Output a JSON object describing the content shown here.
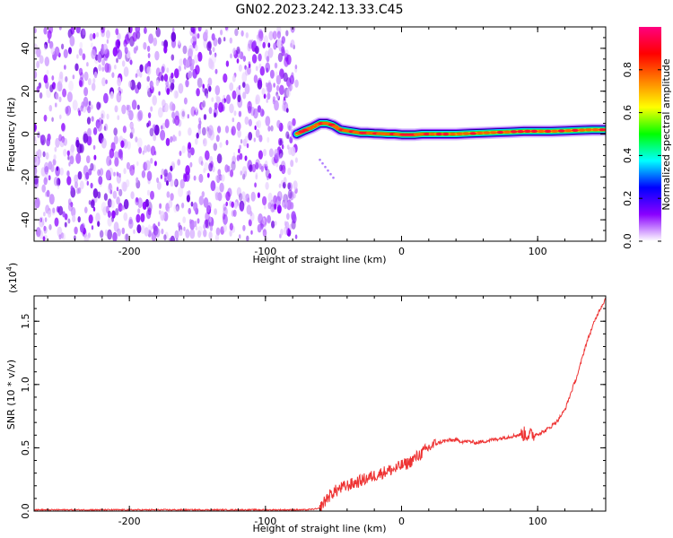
{
  "title": "GN02.2023.242.13.33.C45",
  "chart_data": [
    {
      "type": "heatmap",
      "xlabel": "Height of straight line (km)",
      "ylabel": "Frequency (Hz)",
      "xlim": [
        -270,
        150
      ],
      "ylim": [
        -50,
        50
      ],
      "x_ticks": [
        -200,
        -100,
        0,
        100
      ],
      "y_ticks": [
        -40,
        -20,
        0,
        20,
        40
      ],
      "noise_region_x": [
        -270,
        -77
      ],
      "signal_trace": {
        "x": [
          -77,
          -72,
          -66,
          -60,
          -55,
          -50,
          -45,
          -40,
          -35,
          -30,
          -25,
          -20,
          -15,
          -10,
          -5,
          0,
          5,
          10,
          15,
          20,
          30,
          40,
          50,
          60,
          70,
          80,
          90,
          100,
          110,
          120,
          130,
          140,
          150
        ],
        "y": [
          0,
          1.5,
          3,
          5,
          5,
          4,
          2,
          1.5,
          1,
          0.5,
          0.5,
          0.3,
          0.2,
          0,
          0,
          -0.3,
          -0.3,
          -0.3,
          0,
          0,
          0,
          0,
          0.3,
          0.5,
          0.8,
          1,
          1.3,
          1.3,
          1.3,
          1.5,
          1.8,
          2,
          2
        ]
      },
      "colorbar": {
        "label": "Normalized spectral amplitude",
        "range": [
          0.0,
          1.0
        ],
        "ticks": [
          "0.0",
          "0.2",
          "0.4",
          "0.6",
          "0.8"
        ],
        "tick_values": [
          0,
          0.2,
          0.4,
          0.6,
          0.8
        ],
        "colors": [
          "#ffffff",
          "#8a00ff",
          "#0000ff",
          "#00ffff",
          "#00ff00",
          "#ffff00",
          "#ff8000",
          "#ff0000",
          "#ff0080"
        ]
      }
    },
    {
      "type": "line",
      "xlabel": "Height of straight line (km)",
      "ylabel": "SNR (10 * v/v)",
      "multiplier_label": "(x10",
      "multiplier_exp": "4",
      "multiplier_close": ")",
      "xlim": [
        -270,
        150
      ],
      "ylim": [
        0.0,
        1.7
      ],
      "x_ticks": [
        -200,
        -100,
        0,
        100
      ],
      "y_ticks": [
        0.0,
        0.5,
        1.0,
        1.5
      ],
      "y_tick_labels": [
        "0.0",
        "0.5",
        "1.0",
        "1.5"
      ],
      "series": [
        {
          "color": "#ee3333",
          "x": [
            -270,
            -200,
            -150,
            -100,
            -70,
            -60,
            -55,
            -50,
            -45,
            -40,
            -35,
            -30,
            -25,
            -20,
            -15,
            -10,
            -5,
            0,
            5,
            10,
            15,
            20,
            25,
            30,
            35,
            40,
            45,
            50,
            55,
            60,
            65,
            70,
            75,
            80,
            85,
            90,
            95,
            100,
            105,
            110,
            115,
            120,
            125,
            130,
            135,
            140,
            145,
            150
          ],
          "y": [
            0.01,
            0.01,
            0.01,
            0.01,
            0.01,
            0.02,
            0.1,
            0.15,
            0.18,
            0.2,
            0.22,
            0.24,
            0.26,
            0.28,
            0.3,
            0.32,
            0.33,
            0.36,
            0.38,
            0.42,
            0.46,
            0.5,
            0.53,
            0.55,
            0.56,
            0.56,
            0.55,
            0.55,
            0.54,
            0.55,
            0.56,
            0.57,
            0.58,
            0.59,
            0.6,
            0.61,
            0.6,
            0.61,
            0.63,
            0.67,
            0.72,
            0.8,
            0.95,
            1.1,
            1.3,
            1.45,
            1.58,
            1.68
          ]
        }
      ]
    }
  ]
}
